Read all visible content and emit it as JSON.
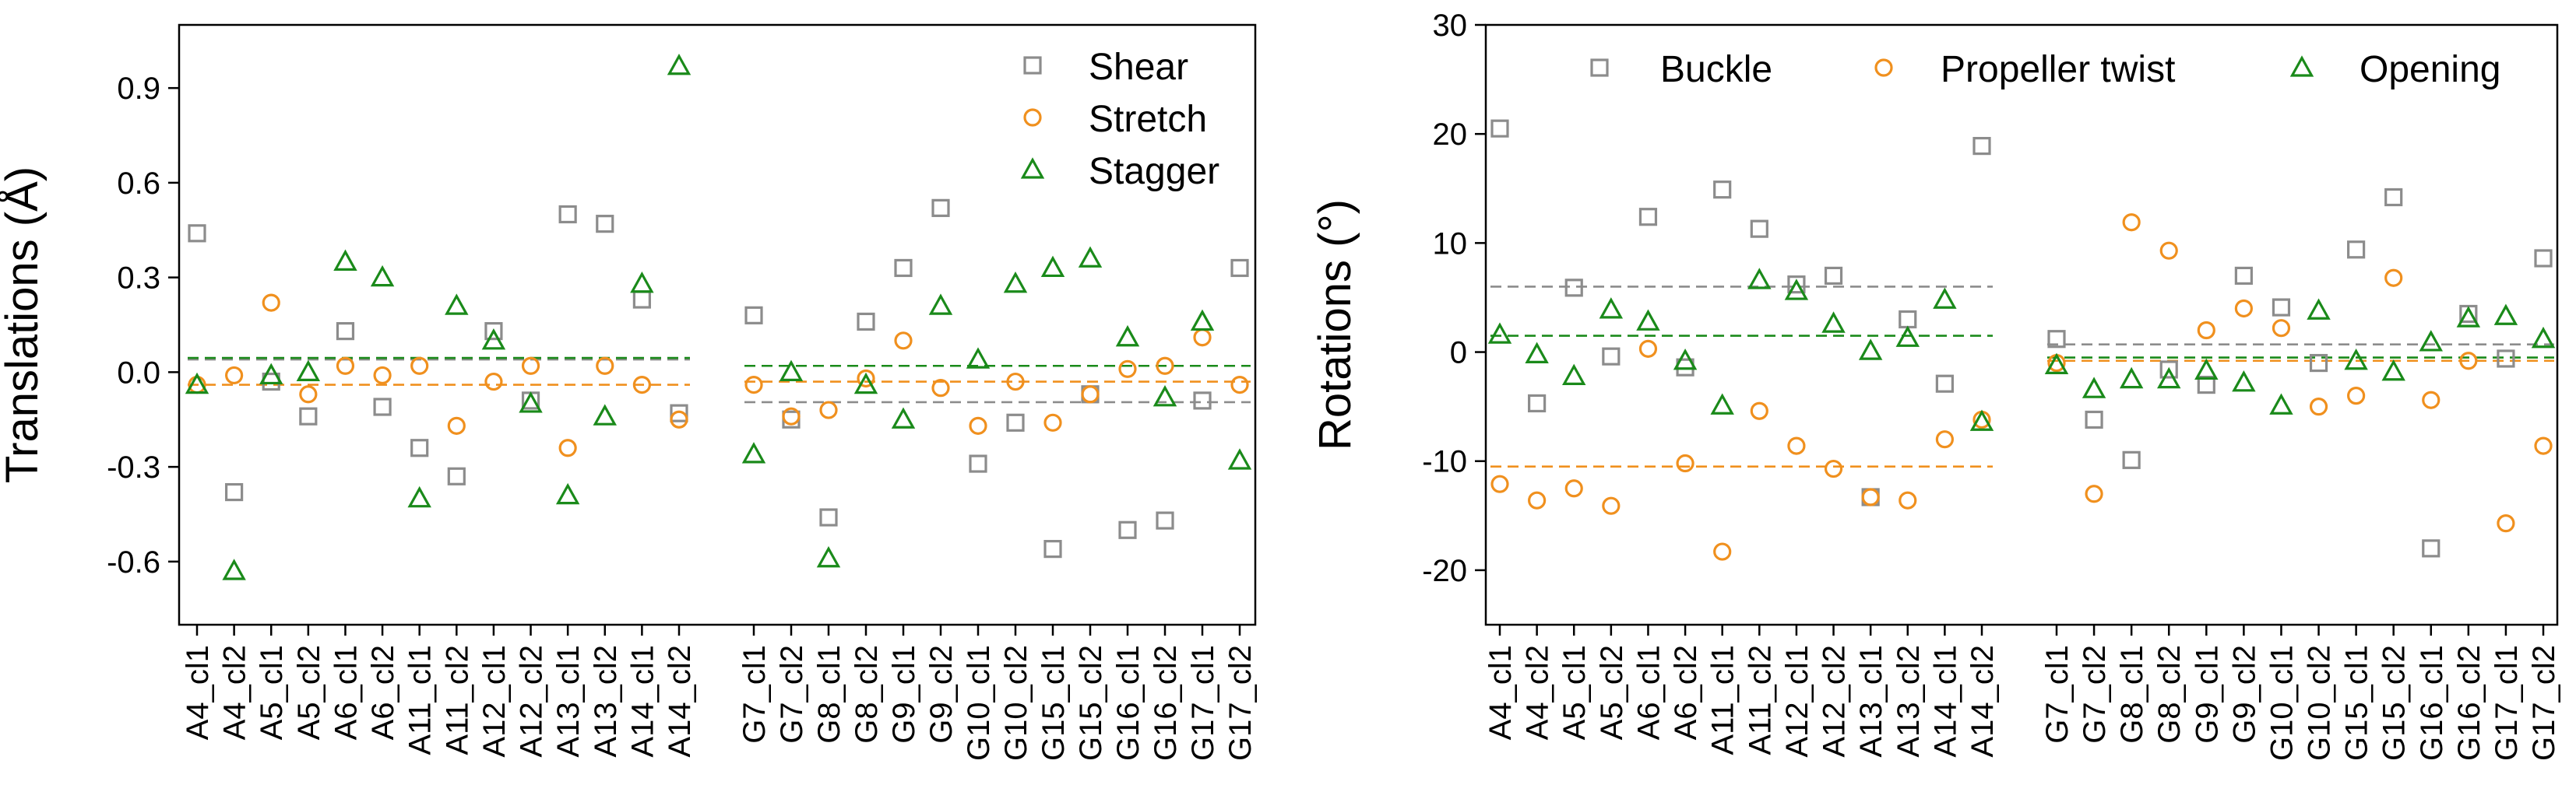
{
  "chart_data": [
    {
      "type": "scatter",
      "ylabel": "Translations (Å)",
      "ylim": [
        -0.8,
        1.1
      ],
      "yticks": [
        -0.6,
        -0.3,
        0.0,
        0.3,
        0.6,
        0.9
      ],
      "ytick_labels": [
        "-0.6",
        "-0.3",
        "0.0",
        "0.3",
        "0.6",
        "0.9"
      ],
      "legend_position": "top-right",
      "groups": [
        {
          "categories": [
            "A4_cl1",
            "A4_cl2",
            "A5_cl1",
            "A5_cl2",
            "A6_cl1",
            "A6_cl2",
            "A11_cl1",
            "A11_cl2",
            "A12_cl1",
            "A12_cl2",
            "A13_cl1",
            "A13_cl2",
            "A14_cl1",
            "A14_cl2"
          ],
          "means": {
            "Shear": 0.04,
            "Stretch": -0.04,
            "Stagger": 0.045
          }
        },
        {
          "categories": [
            "G7_cl1",
            "G7_cl2",
            "G8_cl1",
            "G8_cl2",
            "G9_cl1",
            "G9_cl2",
            "G10_cl1",
            "G10_cl2",
            "G15_cl1",
            "G15_cl2",
            "G16_cl1",
            "G16_cl2",
            "G17_cl1",
            "G17_cl2"
          ],
          "means": {
            "Shear": -0.095,
            "Stretch": -0.03,
            "Stagger": 0.02
          }
        }
      ],
      "series": [
        {
          "name": "Shear",
          "marker": "square",
          "color": "#8c8c8c",
          "values": [
            0.44,
            -0.38,
            -0.03,
            -0.14,
            0.13,
            -0.11,
            -0.24,
            -0.33,
            0.13,
            -0.09,
            0.5,
            0.47,
            0.23,
            -0.13,
            0.18,
            -0.15,
            -0.46,
            0.16,
            0.33,
            0.52,
            -0.29,
            -0.16,
            -0.56,
            -0.07,
            -0.5,
            -0.47,
            -0.09,
            0.33
          ]
        },
        {
          "name": "Stretch",
          "marker": "circle",
          "color": "#f0901e",
          "values": [
            -0.04,
            -0.01,
            0.22,
            -0.07,
            0.02,
            -0.01,
            0.02,
            -0.17,
            -0.03,
            0.02,
            -0.24,
            0.02,
            -0.04,
            -0.15,
            -0.04,
            -0.14,
            -0.12,
            -0.02,
            0.1,
            -0.05,
            -0.17,
            -0.03,
            -0.16,
            -0.07,
            0.01,
            0.02,
            0.11,
            -0.04
          ]
        },
        {
          "name": "Stagger",
          "marker": "triangle",
          "color": "#1a8a1a",
          "values": [
            -0.04,
            -0.63,
            -0.01,
            0.0,
            0.35,
            0.3,
            -0.4,
            0.21,
            0.1,
            -0.1,
            -0.39,
            -0.14,
            0.28,
            0.97,
            -0.26,
            0.0,
            -0.59,
            -0.04,
            -0.15,
            0.21,
            0.04,
            0.28,
            0.33,
            0.36,
            0.11,
            -0.08,
            0.16,
            -0.28
          ]
        }
      ]
    },
    {
      "type": "scatter",
      "ylabel": "Rotations (°)",
      "ylim": [
        -25,
        30
      ],
      "yticks": [
        -20,
        -10,
        0,
        10,
        20,
        30
      ],
      "ytick_labels": [
        "-20",
        "-10",
        "0",
        "10",
        "20",
        "30"
      ],
      "legend_position": "top",
      "groups": [
        {
          "categories": [
            "A4_cl1",
            "A4_cl2",
            "A5_cl1",
            "A5_cl2",
            "A6_cl1",
            "A6_cl2",
            "A11_cl1",
            "A11_cl2",
            "A12_cl1",
            "A12_cl2",
            "A13_cl1",
            "A13_cl2",
            "A14_cl1",
            "A14_cl2"
          ],
          "means": {
            "Buckle": 6.0,
            "Propeller twist": -10.5,
            "Opening": 1.5
          }
        },
        {
          "categories": [
            "G7_cl1",
            "G7_cl2",
            "G8_cl1",
            "G8_cl2",
            "G9_cl1",
            "G9_cl2",
            "G10_cl1",
            "G10_cl2",
            "G15_cl1",
            "G15_cl2",
            "G16_cl1",
            "G16_cl2",
            "G17_cl1",
            "G17_cl2"
          ],
          "means": {
            "Buckle": 0.7,
            "Propeller twist": -0.8,
            "Opening": -0.5
          }
        }
      ],
      "series": [
        {
          "name": "Buckle",
          "marker": "square",
          "color": "#8c8c8c",
          "values": [
            20.5,
            -4.7,
            5.9,
            -0.4,
            12.4,
            -1.4,
            14.9,
            11.3,
            6.2,
            7.0,
            -13.3,
            3.0,
            -2.9,
            18.9,
            1.2,
            -6.2,
            -9.9,
            -1.6,
            -3.0,
            7.0,
            4.1,
            -1.0,
            9.4,
            14.2,
            -18.0,
            3.5,
            -0.6,
            8.6
          ]
        },
        {
          "name": "Propeller twist",
          "marker": "circle",
          "color": "#f0901e",
          "values": [
            -12.1,
            -13.6,
            -12.5,
            -14.1,
            0.3,
            -10.2,
            -18.3,
            -5.4,
            -8.6,
            -10.7,
            -13.3,
            -13.6,
            -8.0,
            -6.2,
            -1.0,
            -13.0,
            11.9,
            9.3,
            2.0,
            4.0,
            2.2,
            -5.0,
            -4.0,
            6.8,
            -4.4,
            -0.8,
            -15.7,
            -8.6
          ]
        },
        {
          "name": "Opening",
          "marker": "triangle",
          "color": "#1a8a1a",
          "values": [
            1.6,
            -0.2,
            -2.2,
            3.9,
            2.8,
            -0.8,
            -4.9,
            6.6,
            5.6,
            2.6,
            0.1,
            1.3,
            4.8,
            -6.4,
            -1.2,
            -3.4,
            -2.5,
            -2.5,
            -1.7,
            -2.8,
            -4.9,
            3.8,
            -0.8,
            -1.8,
            0.9,
            3.1,
            3.3,
            1.2
          ]
        }
      ]
    }
  ]
}
